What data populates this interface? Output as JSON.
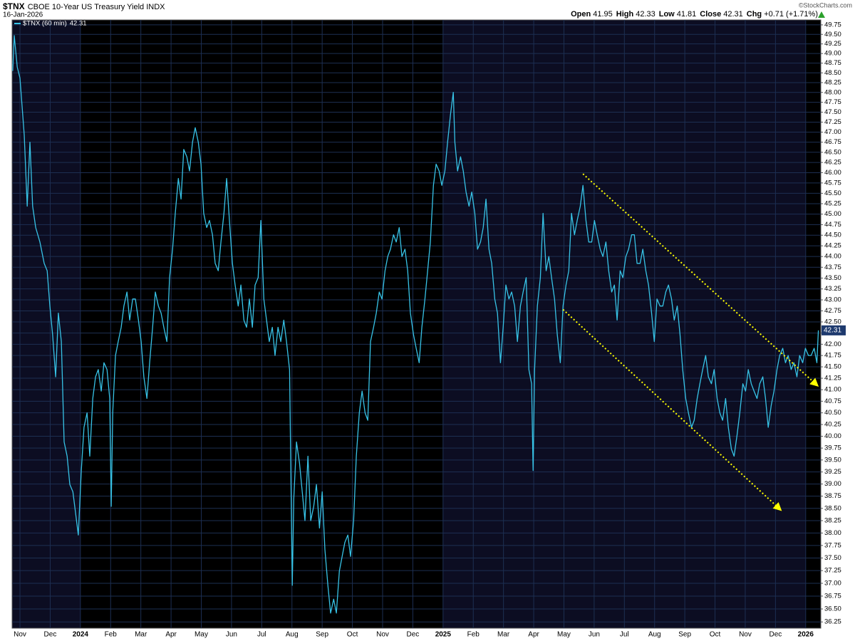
{
  "chart_data": {
    "type": "line",
    "symbol": "$TNX",
    "title": "CBOE 10-Year US Treasury Yield INDX",
    "subtitle": "16-Jan-2026",
    "source": "©StockCharts.com",
    "quote": [
      {
        "label": "Open",
        "value": 41.95
      },
      {
        "label": "High",
        "value": 42.33
      },
      {
        "label": "Low",
        "value": 41.81
      },
      {
        "label": "Close",
        "value": 42.31
      },
      {
        "label": "Chg",
        "text": "+0.71 (+1.71%)"
      }
    ],
    "series": [
      {
        "name": "$TNX (60 min)",
        "color": "#37c3e6",
        "x": [
          -0.24,
          -0.19,
          -0.09,
          0,
          0.14,
          0.24,
          0.33,
          0.42,
          0.52,
          0.66,
          0.8,
          0.9,
          0.99,
          1.08,
          1.18,
          1.27,
          1.37,
          1.46,
          1.56,
          1.65,
          1.75,
          1.84,
          1.93,
          2.03,
          2.12,
          2.22,
          2.31,
          2.41,
          2.5,
          2.59,
          2.69,
          2.78,
          2.88,
          2.97,
          3.02,
          3.07,
          3.16,
          3.25,
          3.35,
          3.44,
          3.54,
          3.63,
          3.73,
          3.82,
          3.92,
          4.01,
          4.1,
          4.2,
          4.29,
          4.39,
          4.48,
          4.58,
          4.67,
          4.76,
          4.86,
          4.95,
          5.05,
          5.14,
          5.24,
          5.33,
          5.42,
          5.52,
          5.61,
          5.71,
          5.8,
          5.9,
          5.99,
          6.08,
          6.18,
          6.27,
          6.37,
          6.46,
          6.56,
          6.65,
          6.75,
          6.84,
          6.93,
          7.03,
          7.12,
          7.22,
          7.31,
          7.41,
          7.5,
          7.59,
          7.69,
          7.78,
          7.88,
          7.97,
          8.07,
          8.16,
          8.25,
          8.35,
          8.44,
          8.54,
          8.63,
          8.73,
          8.82,
          8.92,
          9.01,
          9.06,
          9.15,
          9.25,
          9.34,
          9.43,
          9.53,
          9.62,
          9.72,
          9.81,
          9.91,
          10,
          10.09,
          10.19,
          10.28,
          10.38,
          10.47,
          10.57,
          10.66,
          10.75,
          10.85,
          10.94,
          11.04,
          11.13,
          11.23,
          11.32,
          11.42,
          11.51,
          11.6,
          11.7,
          11.79,
          11.89,
          11.98,
          12.08,
          12.17,
          12.26,
          12.36,
          12.45,
          12.55,
          12.64,
          12.74,
          12.83,
          12.92,
          13.02,
          13.11,
          13.21,
          13.3,
          13.4,
          13.49,
          13.58,
          13.68,
          13.77,
          13.87,
          13.96,
          14.06,
          14.15,
          14.25,
          14.34,
          14.39,
          14.48,
          14.58,
          14.67,
          14.76,
          14.86,
          14.95,
          15.05,
          15.14,
          15.24,
          15.33,
          15.42,
          15.52,
          15.61,
          15.71,
          15.8,
          15.9,
          15.99,
          16.08,
          16.18,
          16.27,
          16.37,
          16.46,
          16.56,
          16.65,
          16.75,
          16.84,
          16.93,
          16.98,
          17.03,
          17.12,
          17.22,
          17.31,
          17.41,
          17.5,
          17.59,
          17.69,
          17.78,
          17.88,
          17.97,
          18.07,
          18.16,
          18.25,
          18.35,
          18.44,
          18.54,
          18.63,
          18.73,
          18.82,
          18.92,
          19.01,
          19.1,
          19.2,
          19.29,
          19.39,
          19.48,
          19.58,
          19.67,
          19.76,
          19.86,
          19.95,
          20.05,
          20.14,
          20.24,
          20.33,
          20.42,
          20.52,
          20.61,
          20.71,
          20.8,
          20.9,
          20.99,
          21.08,
          21.18,
          21.27,
          21.37,
          21.46,
          21.56,
          21.65,
          21.75,
          21.84,
          21.93,
          22.03,
          22.12,
          22.22,
          22.31,
          22.41,
          22.5,
          22.59,
          22.69,
          22.78,
          22.88,
          22.97,
          23.07,
          23.16,
          23.25,
          23.35,
          23.44,
          23.54,
          23.63,
          23.73,
          23.82,
          23.92,
          24.01,
          24.1,
          24.2,
          24.29,
          24.39,
          24.48,
          24.58,
          24.67,
          24.76,
          24.86,
          24.95,
          25.05,
          25.14,
          25.24,
          25.33,
          25.42,
          25.52,
          25.61,
          25.71,
          25.8,
          25.9,
          25.99,
          26.09,
          26.18,
          26.28,
          26.37,
          26.42
        ],
        "values": [
          48.55,
          49.47,
          48.65,
          48.37,
          46.93,
          45.19,
          46.75,
          45.19,
          44.68,
          44.34,
          43.84,
          43.67,
          42.86,
          42.22,
          41.28,
          42.7,
          42.06,
          39.88,
          39.58,
          38.99,
          38.84,
          38.4,
          37.96,
          39.28,
          40.19,
          40.5,
          39.58,
          40.81,
          41.28,
          41.44,
          40.97,
          41.59,
          41.44,
          40.81,
          38.54,
          40.5,
          41.75,
          42.06,
          42.38,
          42.86,
          43.18,
          42.54,
          43.02,
          43.02,
          42.54,
          42.06,
          41.28,
          40.81,
          41.59,
          42.38,
          43.18,
          42.86,
          42.7,
          42.38,
          42.06,
          43.51,
          44.17,
          45.02,
          45.86,
          45.36,
          46.57,
          46.39,
          46.04,
          46.75,
          47.11,
          46.75,
          46.21,
          45.02,
          44.68,
          44.85,
          44.51,
          43.84,
          43.67,
          44.34,
          45.02,
          45.86,
          44.85,
          43.84,
          43.34,
          42.86,
          43.34,
          42.54,
          42.38,
          43.02,
          42.38,
          43.34,
          43.51,
          44.85,
          43.02,
          42.54,
          42.06,
          42.38,
          41.75,
          42.38,
          42.06,
          42.54,
          42.06,
          41.44,
          36.96,
          38.69,
          39.88,
          39.43,
          38.84,
          38.25,
          39.58,
          38.25,
          38.54,
          38.99,
          38.1,
          38.84,
          37.67,
          36.96,
          36.42,
          36.69,
          36.42,
          37.24,
          37.53,
          37.81,
          37.96,
          37.53,
          38.25,
          39.58,
          40.5,
          40.97,
          40.5,
          40.34,
          42.06,
          42.38,
          42.7,
          43.18,
          43.02,
          43.67,
          44,
          44.17,
          44.51,
          44.34,
          44.68,
          44,
          44.17,
          43.67,
          42.7,
          42.22,
          41.91,
          41.59,
          42.38,
          43.02,
          43.67,
          44.34,
          45.69,
          46.21,
          46.04,
          45.69,
          46.04,
          46.75,
          47.46,
          48,
          46.75,
          46.04,
          46.39,
          46.04,
          45.53,
          45.19,
          45.53,
          45.02,
          44.17,
          44.34,
          44.68,
          45.36,
          44.17,
          43.84,
          43.02,
          42.7,
          41.59,
          42.38,
          43.34,
          43.02,
          43.18,
          42.86,
          42.06,
          42.86,
          43.18,
          43.51,
          41.44,
          41.13,
          39.28,
          41.44,
          42.86,
          43.51,
          45.02,
          43.67,
          44,
          43.51,
          43.02,
          42.22,
          41.59,
          42.86,
          43.34,
          43.67,
          45.02,
          44.51,
          44.85,
          45.19,
          45.69,
          44.85,
          44.34,
          44.34,
          44.85,
          44.51,
          44.17,
          44,
          44.34,
          43.67,
          43.18,
          43.34,
          42.54,
          43.67,
          43.51,
          44,
          44.17,
          44.51,
          44.51,
          43.84,
          43.84,
          44.17,
          43.67,
          43.34,
          42.7,
          42.06,
          43.02,
          42.86,
          42.86,
          43.18,
          43.34,
          43.02,
          42.54,
          42.86,
          42.22,
          41.44,
          40.81,
          40.5,
          40.19,
          40.34,
          40.81,
          41.13,
          41.44,
          41.75,
          41.28,
          41.13,
          41.44,
          40.81,
          40.5,
          40.34,
          40.81,
          40.19,
          39.73,
          39.58,
          40.03,
          40.5,
          41.13,
          40.97,
          41.44,
          41.13,
          40.97,
          40.81,
          41.13,
          41.28,
          40.81,
          40.19,
          40.66,
          40.97,
          41.44,
          41.75,
          41.91,
          41.59,
          41.75,
          41.44,
          41.59,
          41.28,
          41.75,
          41.59,
          41.91,
          41.75,
          41.75,
          41.91,
          41.59,
          42.31
        ]
      }
    ],
    "trendlines": [
      {
        "color": "#ffff00",
        "x": [
          18.63,
          26.39
        ],
        "values": [
          45.97,
          41.09
        ]
      },
      {
        "color": "#ffff00",
        "x": [
          17.97,
          25.17
        ],
        "values": [
          42.78,
          38.47
        ]
      }
    ],
    "xlim": [
      -0.26,
      26.5
    ],
    "ylim": [
      36.13,
      49.88
    ],
    "log": true,
    "grid": true,
    "xticks": [
      {
        "value": 0,
        "label": "Nov"
      },
      {
        "value": 1,
        "label": "Dec"
      },
      {
        "value": 2,
        "label": "2024"
      },
      {
        "value": 3,
        "label": "Feb"
      },
      {
        "value": 4,
        "label": "Mar"
      },
      {
        "value": 5,
        "label": "Apr"
      },
      {
        "value": 6,
        "label": "May"
      },
      {
        "value": 7,
        "label": "Jun"
      },
      {
        "value": 8,
        "label": "Jul"
      },
      {
        "value": 9,
        "label": "Aug"
      },
      {
        "value": 10,
        "label": "Sep"
      },
      {
        "value": 11,
        "label": "Oct"
      },
      {
        "value": 12,
        "label": "Nov"
      },
      {
        "value": 13,
        "label": "Dec"
      },
      {
        "value": 14,
        "label": "2025"
      },
      {
        "value": 15,
        "label": "Feb"
      },
      {
        "value": 16,
        "label": "Mar"
      },
      {
        "value": 17,
        "label": "Apr"
      },
      {
        "value": 18,
        "label": "May"
      },
      {
        "value": 19,
        "label": "Jun"
      },
      {
        "value": 20,
        "label": "Jul"
      },
      {
        "value": 21,
        "label": "Aug"
      },
      {
        "value": 22,
        "label": "Sep"
      },
      {
        "value": 23,
        "label": "Oct"
      },
      {
        "value": 24,
        "label": "Nov"
      },
      {
        "value": 25,
        "label": "Dec"
      },
      {
        "value": 26,
        "label": "2026"
      }
    ],
    "yticks": [
      36.25,
      {
        "value": 36.5,
        "label": "36.50"
      },
      36.75,
      {
        "value": 37,
        "label": "37.00"
      },
      37.25,
      {
        "value": 37.5,
        "label": "37.50"
      },
      37.75,
      {
        "value": 38,
        "label": "38.00"
      },
      38.25,
      {
        "value": 38.5,
        "label": "38.50"
      },
      38.75,
      {
        "value": 39,
        "label": "39.00"
      },
      39.25,
      {
        "value": 39.5,
        "label": "39.50"
      },
      39.75,
      {
        "value": 40,
        "label": "40.00"
      },
      40.25,
      {
        "value": 40.5,
        "label": "40.50"
      },
      40.75,
      {
        "value": 41,
        "label": "41.00"
      },
      41.25,
      {
        "value": 41.5,
        "label": "41.50"
      },
      41.75,
      {
        "value": 42,
        "label": "42.00"
      },
      42.25,
      {
        "value": 42.5,
        "label": "42.50"
      },
      42.75,
      {
        "value": 43,
        "label": "43.00"
      },
      43.25,
      {
        "value": 43.5,
        "label": "43.50"
      },
      43.75,
      {
        "value": 44,
        "label": "44.00"
      },
      44.25,
      {
        "value": 44.5,
        "label": "44.50"
      },
      44.75,
      {
        "value": 45,
        "label": "45.00"
      },
      45.25,
      {
        "value": 45.5,
        "label": "45.50"
      },
      45.75,
      {
        "value": 46,
        "label": "46.00"
      },
      46.25,
      {
        "value": 46.5,
        "label": "46.50"
      },
      46.75,
      {
        "value": 47,
        "label": "47.00"
      },
      47.25,
      {
        "value": 47.5,
        "label": "47.50"
      },
      47.75,
      {
        "value": 48,
        "label": "48.00"
      },
      48.25,
      {
        "value": 48.5,
        "label": "48.50"
      },
      48.75,
      {
        "value": 49,
        "label": "49.00"
      },
      49.25,
      {
        "value": 49.5,
        "label": "49.50"
      },
      49.75
    ]
  }
}
